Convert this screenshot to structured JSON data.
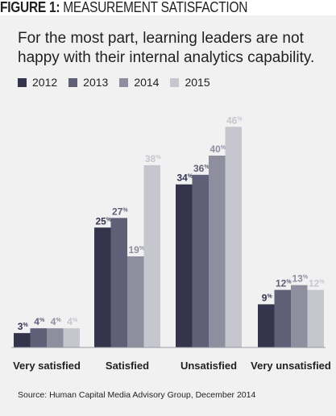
{
  "figure_title": {
    "label": "FIGURE 1:",
    "text": "MEASUREMENT SATISFACTION"
  },
  "subtitle": "For the most part, learning leaders are not happy with their internal analytics capability.",
  "source": "Source: Human Capital Media Advisory Group, December 2014",
  "chart_data": {
    "type": "bar",
    "title": "MEASUREMENT SATISFACTION",
    "xlabel": "",
    "ylabel": "",
    "ylim": [
      0,
      50
    ],
    "grid": false,
    "legend_position": "top-left",
    "categories": [
      "Very satisfied",
      "Satisfied",
      "Unsatisfied",
      "Very unsatisfied"
    ],
    "series": [
      {
        "name": "2012",
        "color": "#34344d",
        "values": [
          3,
          25,
          34,
          9
        ]
      },
      {
        "name": "2013",
        "color": "#5f5f78",
        "values": [
          4,
          27,
          36,
          12
        ]
      },
      {
        "name": "2014",
        "color": "#8e8e9f",
        "values": [
          4,
          19,
          40,
          13
        ]
      },
      {
        "name": "2015",
        "color": "#c6c6ce",
        "values": [
          4,
          38,
          46,
          12
        ]
      }
    ],
    "value_suffix": "%"
  }
}
